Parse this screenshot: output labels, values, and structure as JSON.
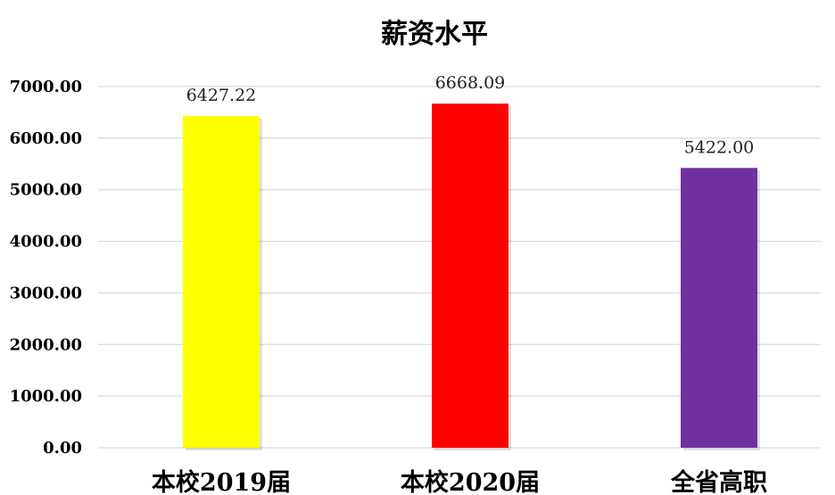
{
  "chart_data": {
    "type": "bar",
    "title": "薪资水平",
    "categories": [
      "本校2019届",
      "本校2020届",
      "全省高职"
    ],
    "values": [
      6427.22,
      6668.09,
      5422.0
    ],
    "data_labels": [
      "6427.22",
      "6668.09",
      "5422.00"
    ],
    "bar_colors": [
      "#FFFF00",
      "#FF0000",
      "#7030A0"
    ],
    "ylim": [
      0,
      7000
    ],
    "yticks": [
      0,
      1000,
      2000,
      3000,
      4000,
      5000,
      6000,
      7000
    ],
    "ytick_labels": [
      "0.00",
      "1000.00",
      "2000.00",
      "3000.00",
      "4000.00",
      "5000.00",
      "6000.00",
      "7000.00"
    ],
    "xlabel": "",
    "ylabel": "",
    "grid": true,
    "legend": "none"
  }
}
